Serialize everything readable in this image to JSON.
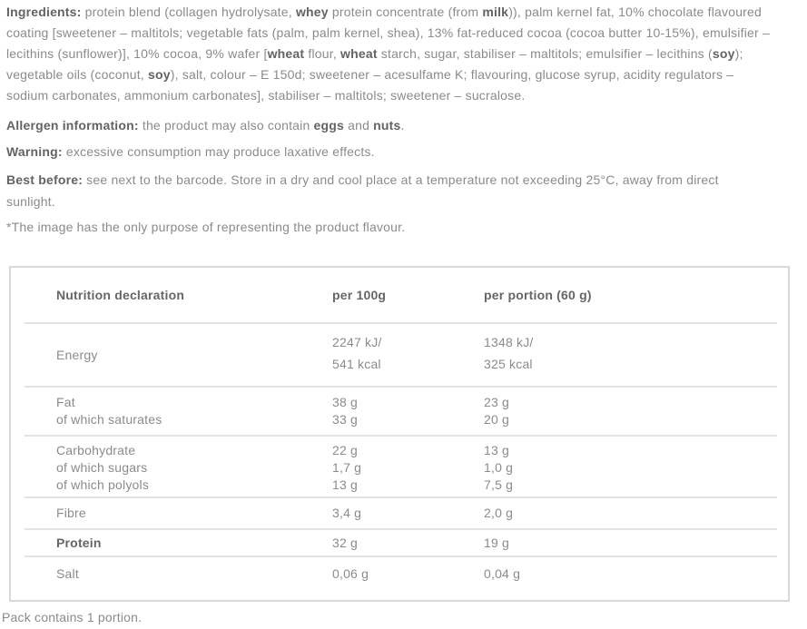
{
  "colors": {
    "text_regular": "#8b8b8b",
    "text_bold": "#636363",
    "table_border": "#d9d9d9",
    "row_separator": "#e3e3e3",
    "background": "#ffffff"
  },
  "paragraphs": {
    "ingredients": {
      "lines": [
        [
          {
            "t": "Ingredients:",
            "b": 1
          },
          {
            "t": " protein blend (collagen hydrolysate, "
          },
          {
            "t": "whey",
            "b": 1
          },
          {
            "t": " protein concentrate (from "
          },
          {
            "t": "milk",
            "b": 1
          },
          {
            "t": ")), palm kernel fat, 10% chocolate flavoured"
          }
        ],
        [
          {
            "t": "coating [sweetener – maltitols; vegetable fats (palm, palm kernel, shea), 13% fat-reduced cocoa (cocoa butter 10-15%), emulsifier –"
          }
        ],
        [
          {
            "t": "lecithins (sunflower)], 10% cocoa, 9% wafer ["
          },
          {
            "t": "wheat",
            "b": 1
          },
          {
            "t": " flour, "
          },
          {
            "t": "wheat",
            "b": 1
          },
          {
            "t": " starch, sugar, stabiliser – maltitols; emulsifier – lecithins ("
          },
          {
            "t": "soy",
            "b": 1
          },
          {
            "t": ");"
          }
        ],
        [
          {
            "t": "vegetable oils (coconut, "
          },
          {
            "t": "soy",
            "b": 1
          },
          {
            "t": "), salt, colour – E 150d; sweetener – acesulfame K; flavouring, glucose syrup, acidity regulators –"
          }
        ],
        [
          {
            "t": "sodium carbonates, ammonium carbonates], stabiliser – maltitols; sweetener – sucralose."
          }
        ]
      ]
    },
    "allergen": {
      "lines": [
        [
          {
            "t": "Allergen information:",
            "b": 1
          },
          {
            "t": " the product may also contain "
          },
          {
            "t": "eggs",
            "b": 1
          },
          {
            "t": " and "
          },
          {
            "t": "nuts",
            "b": 1
          },
          {
            "t": "."
          }
        ]
      ]
    },
    "warning": {
      "lines": [
        [
          {
            "t": "Warning:",
            "b": 1
          },
          {
            "t": " excessive consumption may produce laxative effects."
          }
        ]
      ]
    },
    "best_before": {
      "lines": [
        [
          {
            "t": "Best before:",
            "b": 1
          },
          {
            "t": " see next to the barcode. Store in a dry and cool place at a temperature not exceeding 25°C, away from direct"
          }
        ],
        [
          {
            "t": "sunlight."
          }
        ]
      ]
    },
    "image_note": {
      "lines": [
        [
          {
            "t": "*The image has the only purpose of representing the product flavour."
          }
        ]
      ]
    }
  },
  "nutrition_table": {
    "headers": {
      "label": "Nutrition declaration",
      "per100": "per 100g",
      "portion": "per portion (60 g)"
    },
    "rows": [
      {
        "labels": [
          "Energy"
        ],
        "per100": [
          "2247 kJ/",
          "541 kcal"
        ],
        "portion": [
          "1348 kJ/",
          "325 kcal"
        ]
      },
      {
        "labels": [
          "Fat",
          "of which saturates"
        ],
        "per100": [
          "38 g",
          "33 g"
        ],
        "portion": [
          "23 g",
          "20 g"
        ]
      },
      {
        "labels": [
          "Carbohydrate",
          "of which sugars",
          "of which polyols"
        ],
        "per100": [
          "22 g",
          "1,7 g",
          "13 g"
        ],
        "portion": [
          "13 g",
          "1,0 g",
          "7,5 g"
        ]
      },
      {
        "labels": [
          "Fibre"
        ],
        "per100": [
          "3,4 g"
        ],
        "portion": [
          "2,0 g"
        ]
      },
      {
        "labels": [
          "Protein"
        ],
        "per100": [
          "32 g"
        ],
        "portion": [
          "19 g"
        ]
      },
      {
        "labels": [
          "Salt"
        ],
        "per100": [
          "0,06 g"
        ],
        "portion": [
          "0,04 g"
        ]
      }
    ]
  },
  "footer": {
    "pack_note": "Pack contains 1 portion."
  }
}
